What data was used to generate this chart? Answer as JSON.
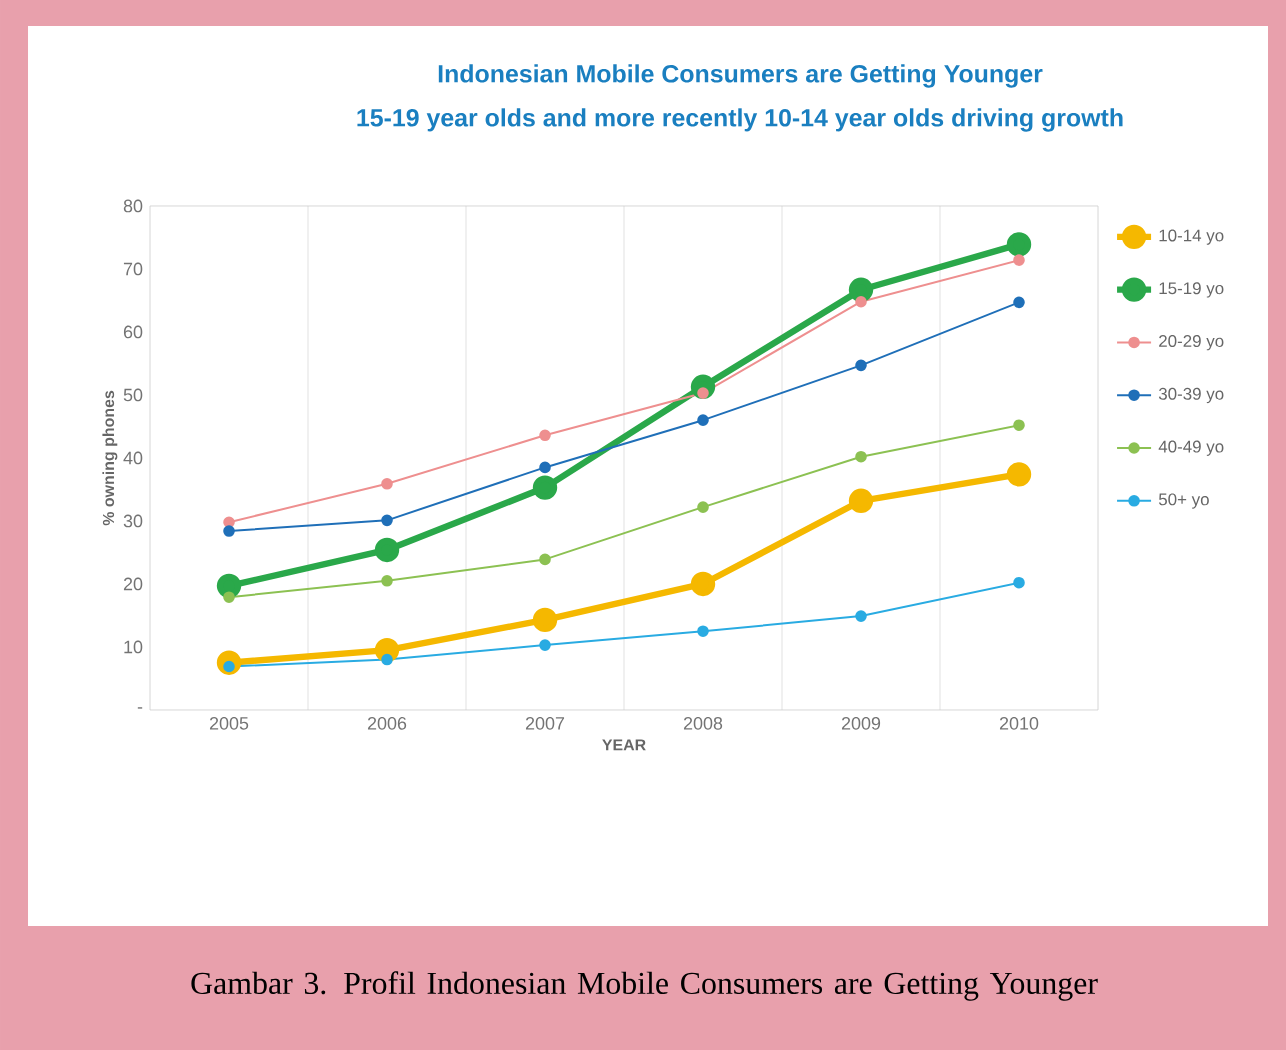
{
  "chart_data": {
    "type": "line",
    "title": "Indonesian Mobile Consumers are Getting Younger",
    "subtitle": "15-19 year olds and more recently 10-14 year olds driving growth",
    "xlabel": "YEAR",
    "ylabel": "% owning phones",
    "categories": [
      "2005",
      "2006",
      "2007",
      "2008",
      "2009",
      "2010"
    ],
    "ylim": [
      0,
      80
    ],
    "yticks": [
      {
        "value": 0,
        "label": "-"
      },
      10,
      20,
      30,
      40,
      50,
      60,
      70,
      80
    ],
    "grid": "x",
    "legend": "right",
    "marker": "circle",
    "line_style": "solid",
    "annotations": [
      "Gambar 3. Profil Indonesian Mobile Consumers are Getting Younger"
    ],
    "series": [
      {
        "name": "10-14 yo",
        "color": "#f5b800",
        "values": [
          7.5,
          9.5,
          14.3,
          20,
          33.2,
          37.4
        ]
      },
      {
        "name": "15-19 yo",
        "color": "#2aa84a",
        "values": [
          19.7,
          25.4,
          35.3,
          51.3,
          66.7,
          73.9
        ]
      },
      {
        "name": "20-29 yo",
        "color": "#ee8f8f",
        "values": [
          29.8,
          35.9,
          43.6,
          50.3,
          64.8,
          71.4
        ]
      },
      {
        "name": "30-39 yo",
        "color": "#1f6fb8",
        "values": [
          28.4,
          30.1,
          38.5,
          46,
          54.7,
          64.7
        ]
      },
      {
        "name": "40-49 yo",
        "color": "#8cc152",
        "values": [
          17.9,
          20.5,
          23.9,
          32.2,
          40.2,
          45.2
        ]
      },
      {
        "name": "50+ yo",
        "color": "#29abe2",
        "values": [
          6.9,
          8,
          10.3,
          12.5,
          14.9,
          20.2
        ]
      }
    ]
  }
}
